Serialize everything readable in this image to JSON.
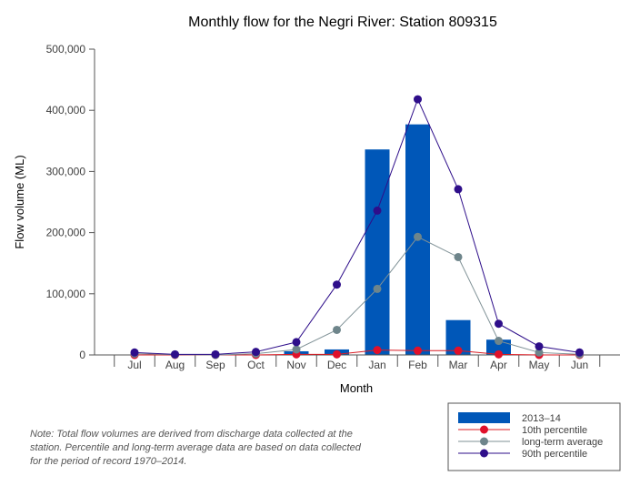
{
  "chart_data": {
    "type": "bar",
    "title": "Monthly flow for the Negri River: Station 809315",
    "xlabel": "Month",
    "ylabel": "Flow volume (ML)",
    "categories": [
      "Jul",
      "Aug",
      "Sep",
      "Oct",
      "Nov",
      "Dec",
      "Jan",
      "Feb",
      "Mar",
      "Apr",
      "May",
      "Jun"
    ],
    "ylim": [
      0,
      500000
    ],
    "yticks": [
      0,
      100000,
      200000,
      300000,
      400000,
      500000
    ],
    "ytick_labels": [
      "0",
      "100,000",
      "200,000",
      "300,000",
      "400,000",
      "500,000"
    ],
    "grid": false,
    "legend_position": "bottom-right",
    "series": [
      {
        "name": "2013–14",
        "type": "bar",
        "color": "#0057b8",
        "values": [
          0,
          0,
          0,
          0,
          6000,
          9000,
          336000,
          377000,
          57000,
          25000,
          0,
          0
        ]
      },
      {
        "name": "10th percentile",
        "type": "line",
        "color": "#d91c24",
        "marker_color": "#e0102a",
        "values": [
          0,
          0,
          0,
          0,
          1000,
          1000,
          8000,
          7000,
          7000,
          1000,
          0,
          0
        ]
      },
      {
        "name": "long-term average",
        "type": "line",
        "color": "#7f9196",
        "marker_color": "#6e858b",
        "values": [
          2000,
          500,
          0,
          2000,
          9000,
          41000,
          108000,
          193000,
          160000,
          23000,
          4000,
          1000
        ]
      },
      {
        "name": "90th percentile",
        "type": "line",
        "color": "#2e0e8a",
        "marker_color": "#2e0e8a",
        "values": [
          4000,
          1000,
          1000,
          5000,
          21000,
          115000,
          236000,
          418000,
          271000,
          51000,
          14000,
          4000
        ]
      }
    ]
  },
  "note": "Note: Total flow volumes are derived from discharge data collected at the station. Percentile and long-term average data are based on data collected for the period of record 1970–2014."
}
